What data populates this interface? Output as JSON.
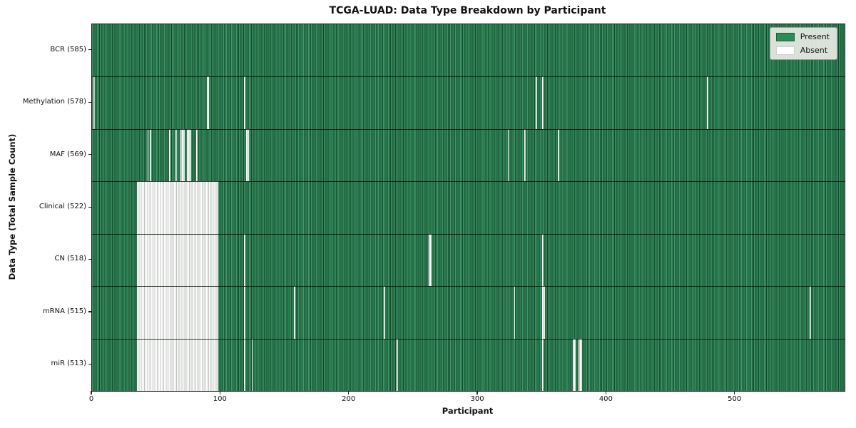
{
  "chart_data": {
    "type": "heatmap",
    "title": "TCGA-LUAD: Data Type Breakdown by Participant",
    "xlabel": "Participant",
    "ylabel": "Data Type (Total Sample Count)",
    "n_participants": 585,
    "x_range": [
      0,
      585
    ],
    "x_ticks": [
      0,
      100,
      200,
      300,
      400,
      500
    ],
    "x_tick_labels": [
      "0",
      "100",
      "200",
      "300",
      "400",
      "500"
    ],
    "grid": false,
    "legend": {
      "position": "upper right",
      "entries": [
        {
          "label": "Present",
          "color": "#2e8b57"
        },
        {
          "label": "Absent",
          "color": "#ffffff"
        }
      ]
    },
    "colors": {
      "present": "#2e8b57",
      "present_edge": "#14482a",
      "absent": "#ffffff",
      "absent_edge": "#bfc3bf"
    },
    "rows": [
      {
        "label": "BCR (585)",
        "data_type": "BCR",
        "present_count": 585,
        "absent_count": 0,
        "absent_ranges": []
      },
      {
        "label": "Methylation (578)",
        "data_type": "Methylation",
        "present_count": 578,
        "absent_count": 7,
        "absent_ranges": [
          [
            1,
            1
          ],
          [
            89,
            2
          ],
          [
            118,
            1
          ],
          [
            345,
            1
          ],
          [
            350,
            1
          ],
          [
            478,
            1
          ]
        ]
      },
      {
        "label": "MAF (569)",
        "data_type": "MAF",
        "present_count": 569,
        "absent_count": 16,
        "absent_ranges": [
          [
            43,
            1
          ],
          [
            45,
            1
          ],
          [
            60,
            1
          ],
          [
            65,
            1
          ],
          [
            69,
            3
          ],
          [
            74,
            3
          ],
          [
            81,
            1
          ],
          [
            120,
            2
          ],
          [
            323,
            1
          ],
          [
            336,
            1
          ],
          [
            362,
            1
          ]
        ]
      },
      {
        "label": "Clinical (522)",
        "data_type": "Clinical",
        "present_count": 522,
        "absent_count": 63,
        "absent_ranges": [
          [
            35,
            63
          ]
        ]
      },
      {
        "label": "CN (518)",
        "data_type": "CN",
        "present_count": 518,
        "absent_count": 67,
        "absent_ranges": [
          [
            35,
            63
          ],
          [
            118,
            1
          ],
          [
            262,
            2
          ],
          [
            350,
            1
          ]
        ]
      },
      {
        "label": "mRNA (515)",
        "data_type": "mRNA",
        "present_count": 515,
        "absent_count": 70,
        "absent_ranges": [
          [
            35,
            63
          ],
          [
            118,
            1
          ],
          [
            157,
            1
          ],
          [
            227,
            1
          ],
          [
            328,
            1
          ],
          [
            350,
            2
          ],
          [
            558,
            1
          ]
        ]
      },
      {
        "label": "miR (513)",
        "data_type": "miR",
        "present_count": 513,
        "absent_count": 72,
        "absent_ranges": [
          [
            35,
            63
          ],
          [
            118,
            1
          ],
          [
            124,
            1
          ],
          [
            237,
            1
          ],
          [
            350,
            1
          ],
          [
            374,
            2
          ],
          [
            378,
            3
          ]
        ]
      }
    ]
  },
  "layout_labels": {
    "present_legend": "Present",
    "absent_legend": "Absent"
  }
}
